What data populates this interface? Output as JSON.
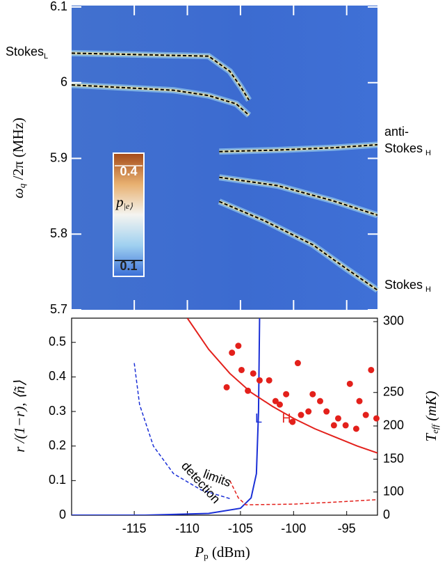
{
  "chart_data": [
    {
      "type": "heatmap",
      "ylabel": {
        "symbol": "ω",
        "sub": "q",
        "rest": " /2π (MHz)"
      },
      "xlim": [
        -120.9,
        -92.1
      ],
      "xticks": [
        -115,
        -110,
        -105,
        -100,
        -95
      ],
      "ylim": [
        5.7,
        6.1
      ],
      "yticks": [
        5.7,
        5.8,
        5.9,
        6.0,
        6.1
      ],
      "colorbar": {
        "symbol": "p",
        "sub": "|e⟩",
        "lim": [
          0.05,
          0.44
        ],
        "ticks": [
          0.1,
          0.4
        ]
      },
      "series": [
        {
          "color": "#000000",
          "x": [
            -120.9,
            -108,
            -106,
            -105,
            -104.2
          ],
          "values": [
            6.039,
            6.035,
            6.015,
            5.995,
            5.977
          ]
        },
        {
          "color": "#000000",
          "x": [
            -120.9,
            -111.3,
            -108,
            -105.4,
            -104.2
          ],
          "values": [
            5.997,
            5.99,
            5.983,
            5.972,
            5.957
          ]
        },
        {
          "color": "#000000",
          "x": [
            -107,
            -101.5,
            -96.3,
            -92.1
          ],
          "values": [
            5.909,
            5.911,
            5.914,
            5.918
          ]
        },
        {
          "color": "#000000",
          "x": [
            -107,
            -101.5,
            -96.3,
            -92.1
          ],
          "values": [
            5.875,
            5.864,
            5.844,
            5.825
          ]
        },
        {
          "color": "#000000",
          "x": [
            -107,
            -102.8,
            -98.2,
            -95,
            -92.1
          ],
          "values": [
            5.843,
            5.818,
            5.786,
            5.754,
            5.726
          ]
        }
      ],
      "annotations": [
        {
          "text": "Stokes",
          "sub": "L"
        },
        {
          "text": "anti-"
        },
        {
          "text": "Stokes",
          "sub": "H"
        },
        {
          "text": "Stokes",
          "sub": "H"
        }
      ]
    },
    {
      "type": "line",
      "ylabel": "r /(1−r), ⟨ñ⟩",
      "y2label": {
        "symbol": "T",
        "sub": "eff",
        "rest": " (mK)"
      },
      "xlabel": {
        "symbol": "P",
        "sub": "p",
        "rest": " (dBm)"
      },
      "xlim": [
        -120.9,
        -92.1
      ],
      "xticks": [
        -115,
        -110,
        -105,
        -100,
        -95
      ],
      "ylim": [
        0,
        0.57
      ],
      "yticks": [
        0,
        0.1,
        0.2,
        0.3,
        0.4,
        0.5
      ],
      "y2ticks": [
        0,
        100,
        150,
        200,
        250,
        300
      ],
      "y2tick_positions": [
        0,
        0.067,
        0.162,
        0.258,
        0.355,
        0.56
      ],
      "series": [
        {
          "name": "L",
          "kind": "line",
          "color": "#1a2fd6",
          "x": [
            -120.9,
            -114,
            -108,
            -105,
            -104,
            -103.5,
            -103.3,
            -103.2
          ],
          "values": [
            0,
            0,
            0.005,
            0.02,
            0.05,
            0.12,
            0.3,
            0.57
          ]
        },
        {
          "name": "H",
          "kind": "line",
          "color": "#e3201b",
          "x": [
            -110,
            -108,
            -106,
            -104,
            -102,
            -100,
            -98,
            -96,
            -94,
            -92.1
          ],
          "values": [
            0.57,
            0.48,
            0.41,
            0.355,
            0.315,
            0.28,
            0.25,
            0.225,
            0.2,
            0.18
          ]
        },
        {
          "kind": "dashed",
          "color": "#1a2fd6",
          "x": [
            -115,
            -114.5,
            -113.2,
            -111.3,
            -108.7,
            -106
          ],
          "values": [
            0.44,
            0.32,
            0.2,
            0.12,
            0.073,
            0.048
          ]
        },
        {
          "kind": "dashed",
          "color": "#e3201b",
          "x": [
            -106,
            -105.2,
            -104.5,
            -100,
            -96,
            -92.1
          ],
          "values": [
            0.1,
            0.05,
            0.03,
            0.032,
            0.038,
            0.045
          ]
        },
        {
          "kind": "scatter",
          "color": "#e3201b",
          "x": [
            -106.3,
            -105.8,
            -105.2,
            -104.9,
            -104.3,
            -103.8,
            -103.2,
            -102.3,
            -101.7,
            -101.3,
            -100.7,
            -100.1,
            -99.6,
            -99.3,
            -98.6,
            -98.2,
            -97.5,
            -96.9,
            -96.2,
            -95.8,
            -95.1,
            -94.7,
            -94.1,
            -93.8,
            -93.2,
            -92.7,
            -92.2
          ],
          "values": [
            0.37,
            0.47,
            0.49,
            0.42,
            0.36,
            0.41,
            0.39,
            0.39,
            0.33,
            0.32,
            0.35,
            0.27,
            0.44,
            0.29,
            0.3,
            0.35,
            0.33,
            0.3,
            0.26,
            0.28,
            0.26,
            0.38,
            0.25,
            0.33,
            0.29,
            0.42,
            0.28
          ]
        }
      ],
      "annotations": [
        "detection",
        "limits"
      ]
    }
  ]
}
